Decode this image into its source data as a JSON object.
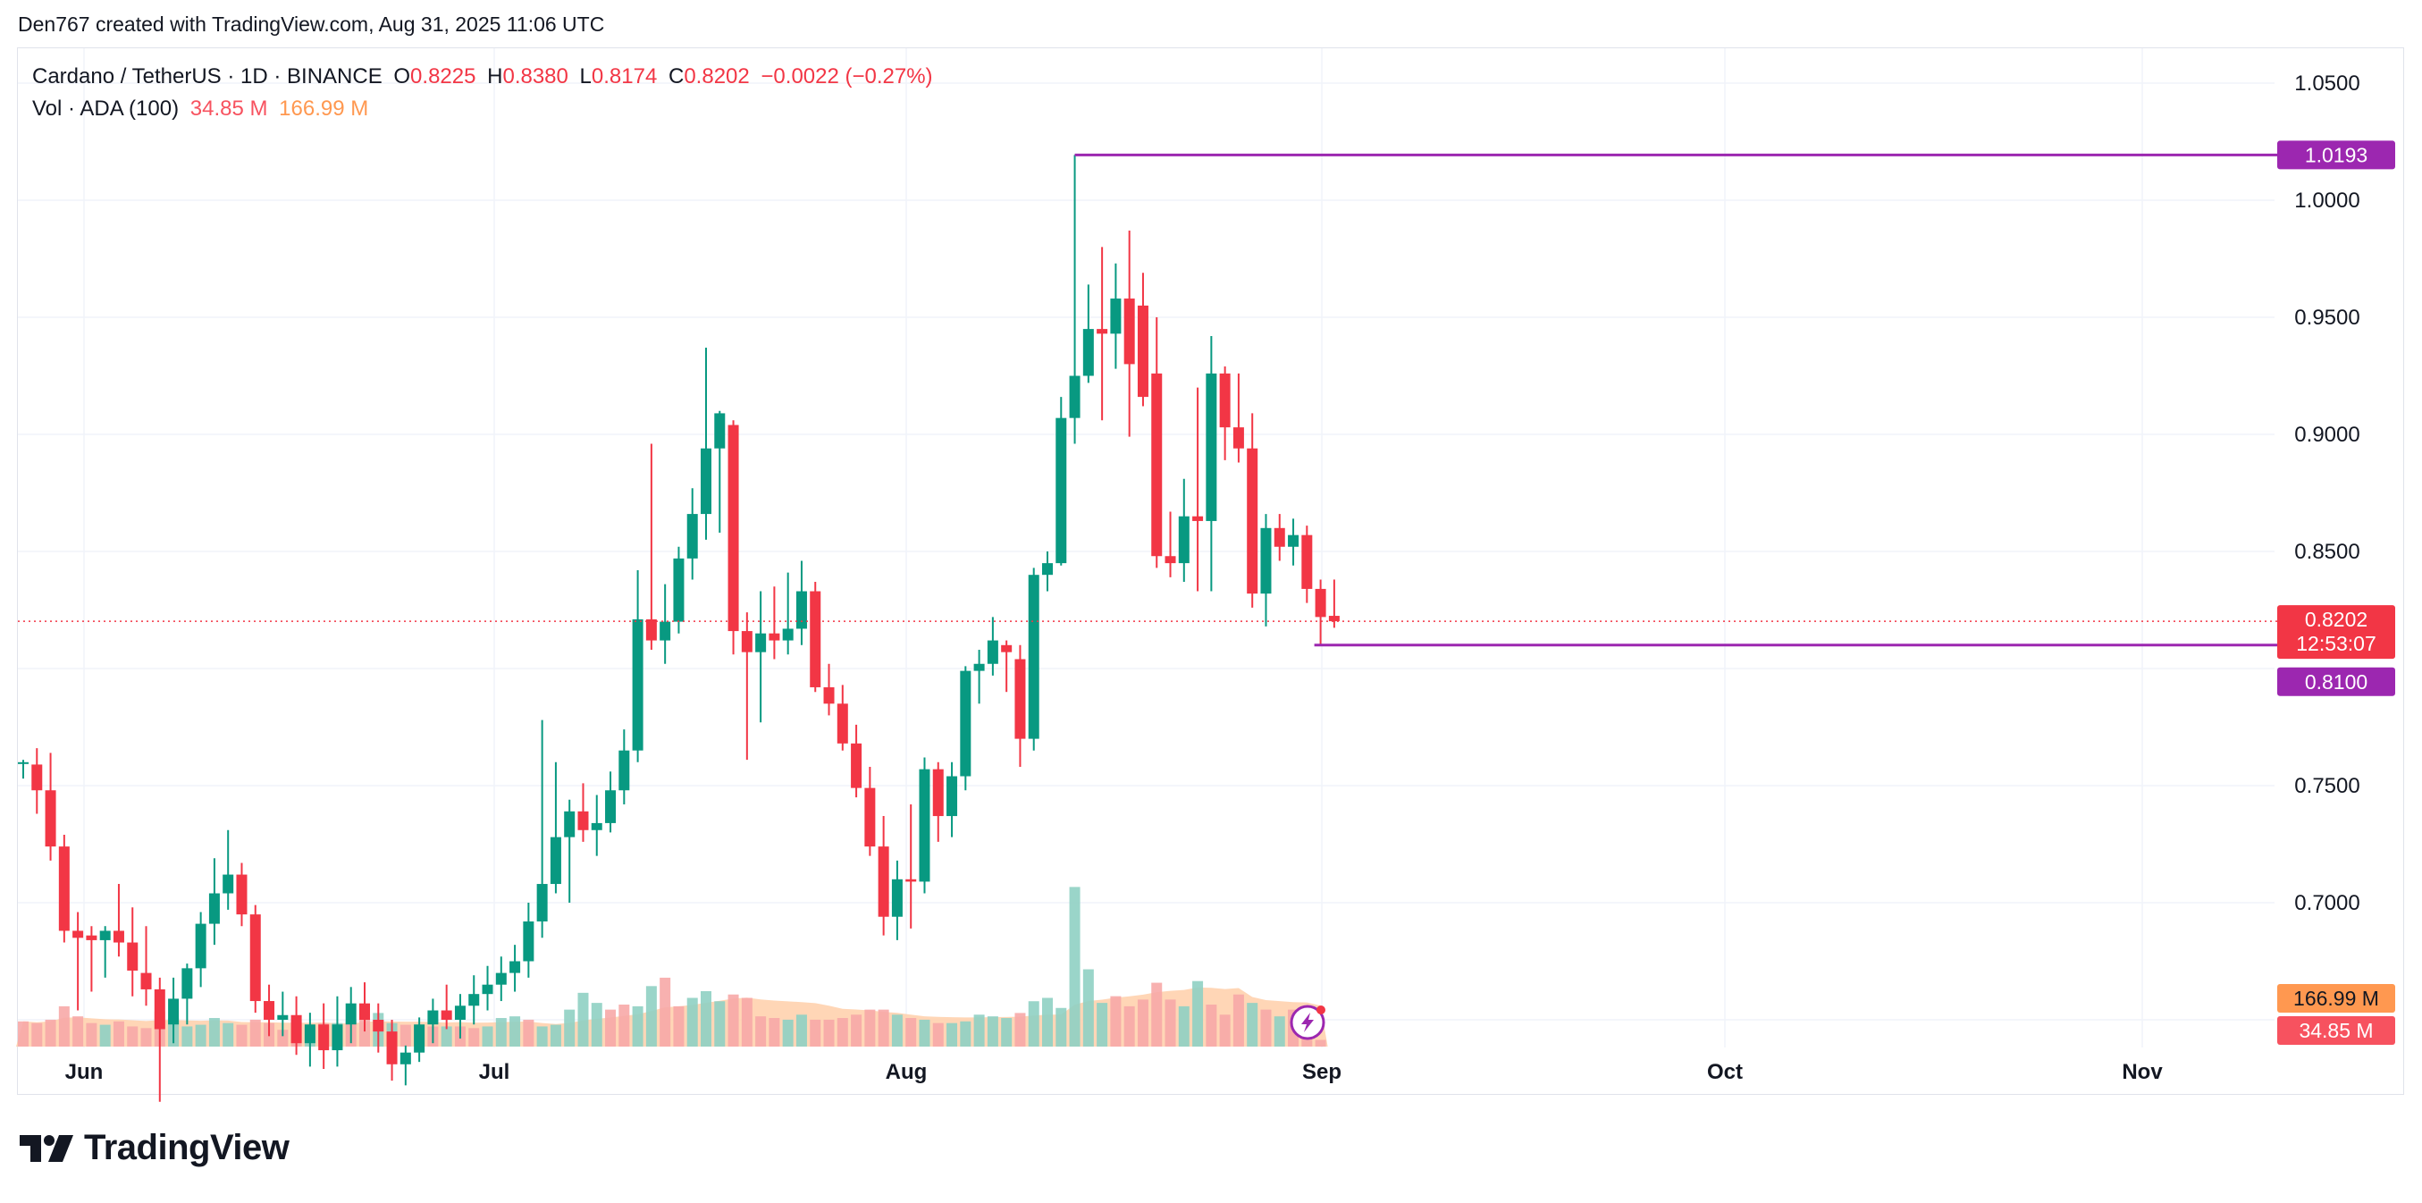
{
  "attribution": "Den767 created with TradingView.com, Aug 31, 2025 11:06 UTC",
  "legend": {
    "symbol": "Cardano / TetherUS · 1D · BINANCE",
    "open_label": "O",
    "open": "0.8225",
    "high_label": "H",
    "high": "0.8380",
    "low_label": "L",
    "low": "0.8174",
    "close_label": "C",
    "close": "0.8202",
    "change": "−0.0022 (−0.27%)",
    "vol_label": "Vol · ADA (100)",
    "vol_value": "34.85 M",
    "vol_ma_value": "166.99 M"
  },
  "logo_text": "TradingView",
  "price_tags": {
    "high_line": "1.0193",
    "last_price": "0.8202",
    "countdown": "12:53:07",
    "low_line": "0.8100",
    "vol_ma": "166.99 M",
    "vol": "34.85 M"
  },
  "colors": {
    "up": "#089981",
    "down": "#f23645",
    "line": "#9c27b0",
    "vol_up": "#8fd0c3",
    "vol_down": "#f7a9a7",
    "vol_ma_fill": "#ffcfa9"
  },
  "chart_data": {
    "type": "candlestick",
    "title": "Cardano / TetherUS · 1D · BINANCE",
    "ylim": [
      0.655,
      1.07
    ],
    "y_ticks": [
      "1.0500",
      "1.0000",
      "0.9500",
      "0.9000",
      "0.8500",
      "0.7500",
      "0.7000"
    ],
    "x_ticks": [
      "Jun",
      "Jul",
      "Aug",
      "Sep",
      "Oct",
      "Nov"
    ],
    "horizontal_lines": [
      1.0193,
      0.81
    ],
    "last_price": 0.8202,
    "candles": [
      {
        "o": 0.76,
        "h": 0.761,
        "l": 0.753,
        "c": 0.76
      },
      {
        "o": 0.759,
        "h": 0.766,
        "l": 0.738,
        "c": 0.748
      },
      {
        "o": 0.748,
        "h": 0.764,
        "l": 0.718,
        "c": 0.724
      },
      {
        "o": 0.724,
        "h": 0.729,
        "l": 0.683,
        "c": 0.688
      },
      {
        "o": 0.688,
        "h": 0.696,
        "l": 0.654,
        "c": 0.685
      },
      {
        "o": 0.686,
        "h": 0.69,
        "l": 0.662,
        "c": 0.684
      },
      {
        "o": 0.684,
        "h": 0.69,
        "l": 0.668,
        "c": 0.688
      },
      {
        "o": 0.688,
        "h": 0.708,
        "l": 0.677,
        "c": 0.683
      },
      {
        "o": 0.683,
        "h": 0.698,
        "l": 0.66,
        "c": 0.671
      },
      {
        "o": 0.67,
        "h": 0.69,
        "l": 0.656,
        "c": 0.663
      },
      {
        "o": 0.663,
        "h": 0.668,
        "l": 0.615,
        "c": 0.646
      },
      {
        "o": 0.648,
        "h": 0.668,
        "l": 0.64,
        "c": 0.659
      },
      {
        "o": 0.659,
        "h": 0.674,
        "l": 0.648,
        "c": 0.672
      },
      {
        "o": 0.672,
        "h": 0.696,
        "l": 0.664,
        "c": 0.691
      },
      {
        "o": 0.691,
        "h": 0.719,
        "l": 0.682,
        "c": 0.704
      },
      {
        "o": 0.704,
        "h": 0.731,
        "l": 0.697,
        "c": 0.712
      },
      {
        "o": 0.712,
        "h": 0.717,
        "l": 0.69,
        "c": 0.695
      },
      {
        "o": 0.695,
        "h": 0.699,
        "l": 0.653,
        "c": 0.658
      },
      {
        "o": 0.658,
        "h": 0.665,
        "l": 0.643,
        "c": 0.65
      },
      {
        "o": 0.65,
        "h": 0.662,
        "l": 0.643,
        "c": 0.652
      },
      {
        "o": 0.652,
        "h": 0.66,
        "l": 0.635,
        "c": 0.64
      },
      {
        "o": 0.64,
        "h": 0.653,
        "l": 0.63,
        "c": 0.648
      },
      {
        "o": 0.648,
        "h": 0.657,
        "l": 0.629,
        "c": 0.637
      },
      {
        "o": 0.637,
        "h": 0.66,
        "l": 0.63,
        "c": 0.648
      },
      {
        "o": 0.648,
        "h": 0.664,
        "l": 0.64,
        "c": 0.657
      },
      {
        "o": 0.657,
        "h": 0.666,
        "l": 0.645,
        "c": 0.65
      },
      {
        "o": 0.65,
        "h": 0.657,
        "l": 0.636,
        "c": 0.645
      },
      {
        "o": 0.645,
        "h": 0.65,
        "l": 0.624,
        "c": 0.631
      },
      {
        "o": 0.631,
        "h": 0.639,
        "l": 0.622,
        "c": 0.636
      },
      {
        "o": 0.636,
        "h": 0.651,
        "l": 0.632,
        "c": 0.648
      },
      {
        "o": 0.648,
        "h": 0.659,
        "l": 0.64,
        "c": 0.654
      },
      {
        "o": 0.654,
        "h": 0.665,
        "l": 0.646,
        "c": 0.65
      },
      {
        "o": 0.65,
        "h": 0.661,
        "l": 0.642,
        "c": 0.656
      },
      {
        "o": 0.656,
        "h": 0.669,
        "l": 0.648,
        "c": 0.661
      },
      {
        "o": 0.661,
        "h": 0.673,
        "l": 0.654,
        "c": 0.665
      },
      {
        "o": 0.665,
        "h": 0.677,
        "l": 0.658,
        "c": 0.67
      },
      {
        "o": 0.67,
        "h": 0.682,
        "l": 0.662,
        "c": 0.675
      },
      {
        "o": 0.675,
        "h": 0.7,
        "l": 0.668,
        "c": 0.692
      },
      {
        "o": 0.692,
        "h": 0.778,
        "l": 0.685,
        "c": 0.708
      },
      {
        "o": 0.708,
        "h": 0.76,
        "l": 0.704,
        "c": 0.728
      },
      {
        "o": 0.728,
        "h": 0.744,
        "l": 0.7,
        "c": 0.739
      },
      {
        "o": 0.739,
        "h": 0.751,
        "l": 0.726,
        "c": 0.731
      },
      {
        "o": 0.731,
        "h": 0.746,
        "l": 0.72,
        "c": 0.734
      },
      {
        "o": 0.734,
        "h": 0.756,
        "l": 0.73,
        "c": 0.748
      },
      {
        "o": 0.748,
        "h": 0.774,
        "l": 0.742,
        "c": 0.765
      },
      {
        "o": 0.765,
        "h": 0.842,
        "l": 0.76,
        "c": 0.821
      },
      {
        "o": 0.821,
        "h": 0.896,
        "l": 0.808,
        "c": 0.812
      },
      {
        "o": 0.812,
        "h": 0.836,
        "l": 0.802,
        "c": 0.82
      },
      {
        "o": 0.82,
        "h": 0.852,
        "l": 0.815,
        "c": 0.847
      },
      {
        "o": 0.847,
        "h": 0.877,
        "l": 0.838,
        "c": 0.866
      },
      {
        "o": 0.866,
        "h": 0.937,
        "l": 0.855,
        "c": 0.894
      },
      {
        "o": 0.894,
        "h": 0.91,
        "l": 0.858,
        "c": 0.909
      },
      {
        "o": 0.904,
        "h": 0.906,
        "l": 0.806,
        "c": 0.816
      },
      {
        "o": 0.816,
        "h": 0.824,
        "l": 0.761,
        "c": 0.807
      },
      {
        "o": 0.807,
        "h": 0.833,
        "l": 0.777,
        "c": 0.815
      },
      {
        "o": 0.815,
        "h": 0.835,
        "l": 0.804,
        "c": 0.812
      },
      {
        "o": 0.812,
        "h": 0.841,
        "l": 0.806,
        "c": 0.817
      },
      {
        "o": 0.817,
        "h": 0.846,
        "l": 0.81,
        "c": 0.833
      },
      {
        "o": 0.833,
        "h": 0.837,
        "l": 0.79,
        "c": 0.792
      },
      {
        "o": 0.792,
        "h": 0.802,
        "l": 0.78,
        "c": 0.785
      },
      {
        "o": 0.785,
        "h": 0.793,
        "l": 0.765,
        "c": 0.768
      },
      {
        "o": 0.768,
        "h": 0.776,
        "l": 0.745,
        "c": 0.749
      },
      {
        "o": 0.749,
        "h": 0.758,
        "l": 0.72,
        "c": 0.724
      },
      {
        "o": 0.724,
        "h": 0.737,
        "l": 0.686,
        "c": 0.694
      },
      {
        "o": 0.694,
        "h": 0.718,
        "l": 0.684,
        "c": 0.71
      },
      {
        "o": 0.71,
        "h": 0.742,
        "l": 0.689,
        "c": 0.709
      },
      {
        "o": 0.709,
        "h": 0.762,
        "l": 0.704,
        "c": 0.757
      },
      {
        "o": 0.757,
        "h": 0.76,
        "l": 0.726,
        "c": 0.737
      },
      {
        "o": 0.737,
        "h": 0.76,
        "l": 0.728,
        "c": 0.754
      },
      {
        "o": 0.754,
        "h": 0.801,
        "l": 0.748,
        "c": 0.799
      },
      {
        "o": 0.799,
        "h": 0.808,
        "l": 0.785,
        "c": 0.802
      },
      {
        "o": 0.802,
        "h": 0.822,
        "l": 0.797,
        "c": 0.812
      },
      {
        "o": 0.81,
        "h": 0.812,
        "l": 0.79,
        "c": 0.807
      },
      {
        "o": 0.804,
        "h": 0.81,
        "l": 0.758,
        "c": 0.77
      },
      {
        "o": 0.77,
        "h": 0.843,
        "l": 0.765,
        "c": 0.84
      },
      {
        "o": 0.84,
        "h": 0.85,
        "l": 0.833,
        "c": 0.845
      },
      {
        "o": 0.845,
        "h": 0.916,
        "l": 0.844,
        "c": 0.907
      },
      {
        "o": 0.907,
        "h": 1.0193,
        "l": 0.896,
        "c": 0.925
      },
      {
        "o": 0.925,
        "h": 0.964,
        "l": 0.922,
        "c": 0.945
      },
      {
        "o": 0.945,
        "h": 0.98,
        "l": 0.906,
        "c": 0.943
      },
      {
        "o": 0.943,
        "h": 0.973,
        "l": 0.928,
        "c": 0.958
      },
      {
        "o": 0.958,
        "h": 0.987,
        "l": 0.899,
        "c": 0.93
      },
      {
        "o": 0.955,
        "h": 0.969,
        "l": 0.912,
        "c": 0.916
      },
      {
        "o": 0.926,
        "h": 0.95,
        "l": 0.843,
        "c": 0.848
      },
      {
        "o": 0.848,
        "h": 0.867,
        "l": 0.839,
        "c": 0.845
      },
      {
        "o": 0.845,
        "h": 0.881,
        "l": 0.837,
        "c": 0.865
      },
      {
        "o": 0.865,
        "h": 0.92,
        "l": 0.833,
        "c": 0.863
      },
      {
        "o": 0.863,
        "h": 0.942,
        "l": 0.833,
        "c": 0.926
      },
      {
        "o": 0.926,
        "h": 0.929,
        "l": 0.889,
        "c": 0.903
      },
      {
        "o": 0.903,
        "h": 0.926,
        "l": 0.888,
        "c": 0.894
      },
      {
        "o": 0.894,
        "h": 0.909,
        "l": 0.826,
        "c": 0.832
      },
      {
        "o": 0.832,
        "h": 0.866,
        "l": 0.818,
        "c": 0.86
      },
      {
        "o": 0.86,
        "h": 0.866,
        "l": 0.846,
        "c": 0.852
      },
      {
        "o": 0.852,
        "h": 0.864,
        "l": 0.844,
        "c": 0.857
      },
      {
        "o": 0.857,
        "h": 0.861,
        "l": 0.828,
        "c": 0.834
      },
      {
        "o": 0.834,
        "h": 0.838,
        "l": 0.81,
        "c": 0.822
      },
      {
        "o": 0.8225,
        "h": 0.838,
        "l": 0.8174,
        "c": 0.8202
      }
    ],
    "volume": [
      {
        "v": 15,
        "up": false
      },
      {
        "v": 14,
        "up": false
      },
      {
        "v": 16,
        "up": false
      },
      {
        "v": 24,
        "up": false
      },
      {
        "v": 18,
        "up": false
      },
      {
        "v": 14,
        "up": false
      },
      {
        "v": 13,
        "up": true
      },
      {
        "v": 15,
        "up": false
      },
      {
        "v": 12,
        "up": false
      },
      {
        "v": 11,
        "up": false
      },
      {
        "v": 21,
        "up": false
      },
      {
        "v": 17,
        "up": true
      },
      {
        "v": 12,
        "up": true
      },
      {
        "v": 13,
        "up": true
      },
      {
        "v": 17,
        "up": true
      },
      {
        "v": 14,
        "up": true
      },
      {
        "v": 13,
        "up": false
      },
      {
        "v": 16,
        "up": false
      },
      {
        "v": 14,
        "up": false
      },
      {
        "v": 10,
        "up": false
      },
      {
        "v": 15,
        "up": false
      },
      {
        "v": 11,
        "up": true
      },
      {
        "v": 14,
        "up": false
      },
      {
        "v": 14,
        "up": true
      },
      {
        "v": 15,
        "up": false
      },
      {
        "v": 24,
        "up": false
      },
      {
        "v": 20,
        "up": true
      },
      {
        "v": 14,
        "up": true
      },
      {
        "v": 13,
        "up": false
      },
      {
        "v": 13,
        "up": false
      },
      {
        "v": 12,
        "up": false
      },
      {
        "v": 12,
        "up": true
      },
      {
        "v": 12,
        "up": false
      },
      {
        "v": 11,
        "up": false
      },
      {
        "v": 12,
        "up": true
      },
      {
        "v": 17,
        "up": true
      },
      {
        "v": 18,
        "up": true
      },
      {
        "v": 16,
        "up": false
      },
      {
        "v": 12,
        "up": true
      },
      {
        "v": 13,
        "up": true
      },
      {
        "v": 22,
        "up": true
      },
      {
        "v": 32,
        "up": true
      },
      {
        "v": 26,
        "up": true
      },
      {
        "v": 22,
        "up": false
      },
      {
        "v": 25,
        "up": false
      },
      {
        "v": 24,
        "up": true
      },
      {
        "v": 36,
        "up": true
      },
      {
        "v": 41,
        "up": false
      },
      {
        "v": 24,
        "up": false
      },
      {
        "v": 29,
        "up": true
      },
      {
        "v": 33,
        "up": true
      },
      {
        "v": 27,
        "up": true
      },
      {
        "v": 31,
        "up": false
      },
      {
        "v": 29,
        "up": false
      },
      {
        "v": 18,
        "up": false
      },
      {
        "v": 17,
        "up": false
      },
      {
        "v": 16,
        "up": true
      },
      {
        "v": 19,
        "up": true
      },
      {
        "v": 16,
        "up": false
      },
      {
        "v": 16,
        "up": false
      },
      {
        "v": 17,
        "up": false
      },
      {
        "v": 19,
        "up": false
      },
      {
        "v": 22,
        "up": false
      },
      {
        "v": 22,
        "up": false
      },
      {
        "v": 19,
        "up": true
      },
      {
        "v": 17,
        "up": false
      },
      {
        "v": 16,
        "up": true
      },
      {
        "v": 14,
        "up": false
      },
      {
        "v": 14,
        "up": true
      },
      {
        "v": 15,
        "up": true
      },
      {
        "v": 19,
        "up": true
      },
      {
        "v": 18,
        "up": true
      },
      {
        "v": 17,
        "up": true
      },
      {
        "v": 20,
        "up": false
      },
      {
        "v": 27,
        "up": true
      },
      {
        "v": 29,
        "up": true
      },
      {
        "v": 23,
        "up": true
      },
      {
        "v": 95,
        "up": true
      },
      {
        "v": 46,
        "up": true
      },
      {
        "v": 26,
        "up": true
      },
      {
        "v": 30,
        "up": false
      },
      {
        "v": 24,
        "up": false
      },
      {
        "v": 28,
        "up": false
      },
      {
        "v": 38,
        "up": false
      },
      {
        "v": 28,
        "up": false
      },
      {
        "v": 24,
        "up": true
      },
      {
        "v": 39,
        "up": true
      },
      {
        "v": 25,
        "up": false
      },
      {
        "v": 19,
        "up": false
      },
      {
        "v": 31,
        "up": false
      },
      {
        "v": 26,
        "up": true
      },
      {
        "v": 22,
        "up": false
      },
      {
        "v": 18,
        "up": true
      },
      {
        "v": 22,
        "up": false
      },
      {
        "v": 21,
        "up": false
      },
      {
        "v": 4,
        "up": false
      }
    ]
  }
}
